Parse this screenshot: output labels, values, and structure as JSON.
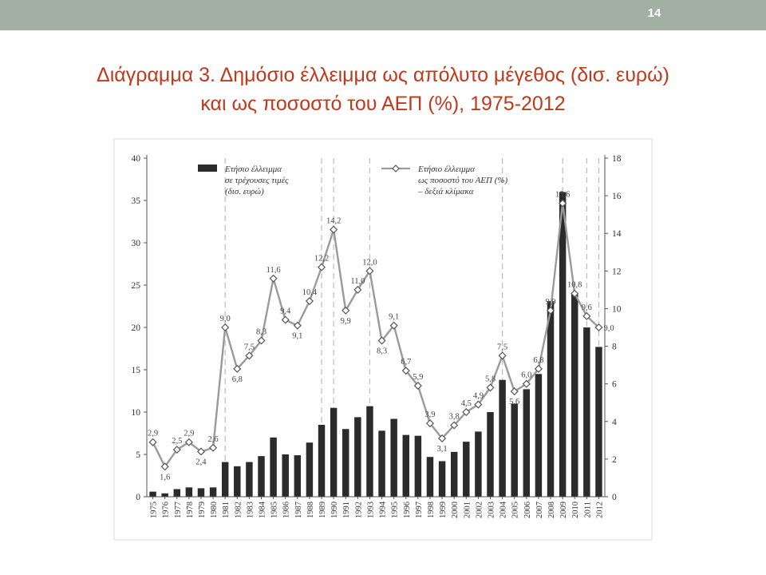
{
  "slide": {
    "number": "14",
    "title_line1": "Διάγραμμα 3. Δημόσιο έλλειμμα ως απόλυτο μέγεθος (δισ. ευρώ)",
    "title_line2": "και ως ποσοστό του ΑΕΠ (%), 1975-2012"
  },
  "chart_data": {
    "type": "bar",
    "categories": [
      "1975",
      "1976",
      "1977",
      "1978",
      "1979",
      "1980",
      "1981",
      "1982",
      "1983",
      "1984",
      "1985",
      "1986",
      "1987",
      "1988",
      "1989",
      "1990",
      "1991",
      "1992",
      "1993",
      "1994",
      "1995",
      "1996",
      "1997",
      "1998",
      "1999",
      "2000",
      "2001",
      "2002",
      "2003",
      "2004",
      "2005",
      "2006",
      "2007",
      "2008",
      "2009",
      "2010",
      "2011",
      "2012"
    ],
    "series": [
      {
        "name_lines": [
          "Ετήσιο έλλειμμα",
          "σε τρέχουσες τιμές",
          "(δισ. ευρώ)"
        ],
        "type": "bar",
        "axis": "left",
        "color": "#2b2b2b",
        "values": [
          0.6,
          0.4,
          0.9,
          1.1,
          1.0,
          1.1,
          4.1,
          3.6,
          4.1,
          4.8,
          7.0,
          5.0,
          4.9,
          6.4,
          8.5,
          10.5,
          8.0,
          9.4,
          10.7,
          7.8,
          9.2,
          7.3,
          7.2,
          4.7,
          4.2,
          5.3,
          6.5,
          7.7,
          10.0,
          13.8,
          11.0,
          12.7,
          14.5,
          23.1,
          36.0,
          24.0,
          20.0,
          17.7
        ]
      },
      {
        "name_lines": [
          "Ετήσιο έλλειμμα",
          "ως ποσοστό του ΑΕΠ (%)",
          "– δεξιά κλίμακα"
        ],
        "type": "line",
        "axis": "right",
        "color": "#9a9a9a",
        "values": [
          2.9,
          1.6,
          2.5,
          2.9,
          2.4,
          2.6,
          9.0,
          6.8,
          7.5,
          8.3,
          11.6,
          9.4,
          9.1,
          10.4,
          12.2,
          14.2,
          9.9,
          11.0,
          12.0,
          8.3,
          9.1,
          6.7,
          5.9,
          3.9,
          3.1,
          3.8,
          4.5,
          4.9,
          5.8,
          7.5,
          5.6,
          6.0,
          6.8,
          9.9,
          15.6,
          10.8,
          9.6,
          9.0
        ],
        "labels": [
          "2,9",
          "1,6",
          "2,5",
          "2,9",
          "2,4",
          "2,6",
          "9,0",
          "6,8",
          "7,5",
          "8,3",
          "11,6",
          "9,4",
          "9,1",
          "10,4",
          "12,2",
          "14,2",
          "9,9",
          "11,0",
          "12,0",
          "8,3",
          "9,1",
          "6,7",
          "5,9",
          "3,9",
          "3,1",
          "3,8",
          "4,5",
          "4,9",
          "5,8",
          "7,5",
          "5,6",
          "6,0",
          "6,8",
          "9,9",
          "15,6",
          "10,8",
          "9,6",
          "9,0"
        ]
      }
    ],
    "y_left": {
      "min": 0,
      "max": 40,
      "ticks": [
        "0",
        "5",
        "10",
        "15",
        "20",
        "25",
        "30",
        "35",
        "40"
      ]
    },
    "y_right": {
      "min": 0,
      "max": 18,
      "ticks": [
        "0",
        "2",
        "4",
        "6",
        "8",
        "10",
        "12",
        "14",
        "16",
        "18"
      ]
    },
    "election_years": [
      "1981",
      "1989",
      "1990",
      "1993",
      "2004",
      "2009",
      "2011",
      "2012"
    ],
    "grid": false
  }
}
